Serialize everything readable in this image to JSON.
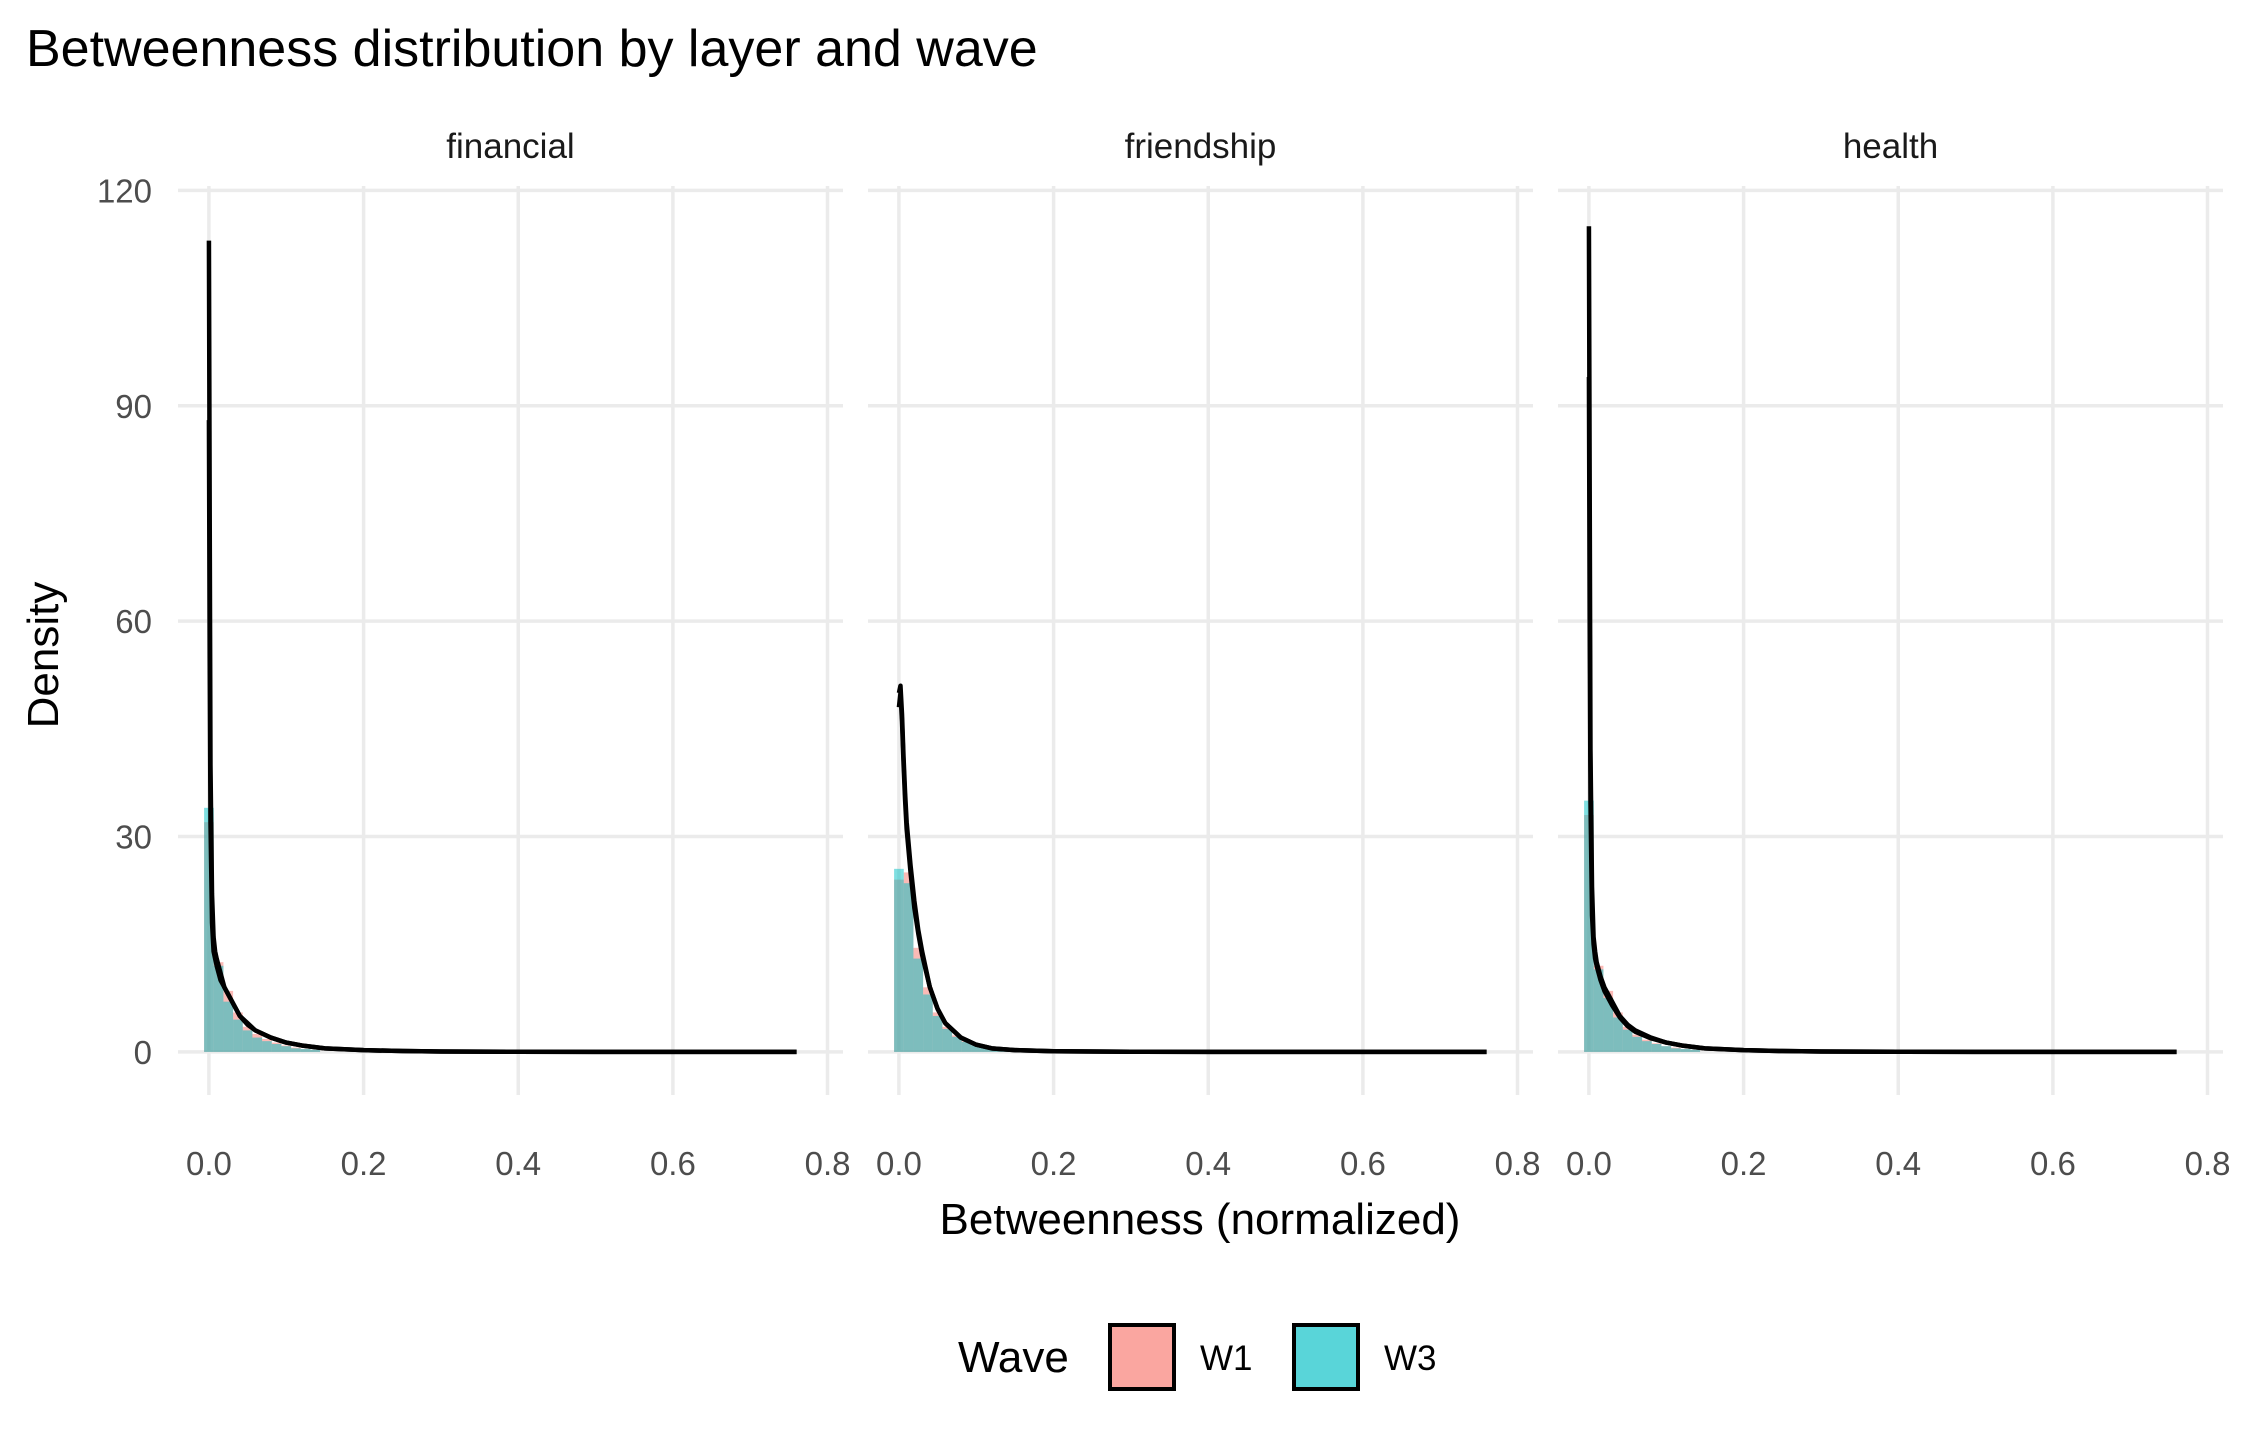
{
  "chart_data": {
    "type": "histogram-density-facets",
    "title": "Betweenness distribution by layer and wave",
    "xlabel": "Betweenness (normalized)",
    "ylabel": "Density",
    "xlim": [
      -0.04,
      0.82
    ],
    "ylim": [
      -6,
      122
    ],
    "x_ticks": [
      0.0,
      0.2,
      0.4,
      0.6,
      0.8
    ],
    "x_tick_labels": [
      "0.0",
      "0.2",
      "0.4",
      "0.6",
      "0.8"
    ],
    "y_ticks": [
      0,
      30,
      60,
      90,
      120
    ],
    "y_tick_labels": [
      "0",
      "30",
      "60",
      "90",
      "120"
    ],
    "grid": true,
    "legend": {
      "title": "Wave",
      "position": "bottom",
      "entries": [
        {
          "label": "W1",
          "color": "#F8766D"
        },
        {
          "label": "W3",
          "color": "#00BFC4"
        }
      ]
    },
    "bin_width": 0.0125,
    "fill_opacity": 0.5,
    "density_line_color": "#000000",
    "facets": [
      {
        "name": "financial",
        "hist_W1": [
          32,
          12.5,
          8.5,
          5.5,
          3.5,
          2.5,
          1.8,
          1.3,
          0.9,
          0.6,
          0.4,
          0.3
        ],
        "hist_W3": [
          34,
          12,
          7,
          4.5,
          3,
          2,
          1.5,
          1.1,
          0.8,
          0.5,
          0.4,
          0.3
        ],
        "density_x": [
          0.0,
          0.001,
          0.002,
          0.004,
          0.006,
          0.008,
          0.01,
          0.015,
          0.02,
          0.03,
          0.04,
          0.05,
          0.06,
          0.08,
          0.1,
          0.12,
          0.15,
          0.2,
          0.25,
          0.3,
          0.4,
          0.5,
          0.6,
          0.7,
          0.76
        ],
        "density_W1": [
          88,
          55,
          32,
          18,
          14,
          13,
          12,
          10,
          9,
          7,
          5,
          3.8,
          3,
          2,
          1.3,
          0.9,
          0.5,
          0.25,
          0.12,
          0.06,
          0.02,
          0.01,
          0,
          0,
          0
        ],
        "density_W3": [
          113,
          75,
          40,
          22,
          16,
          14,
          13,
          11,
          9,
          7,
          5,
          4,
          3,
          2,
          1.3,
          0.9,
          0.5,
          0.25,
          0.12,
          0.06,
          0.02,
          0.01,
          0,
          0,
          0
        ]
      },
      {
        "name": "friendship",
        "hist_W1": [
          24,
          25,
          14.5,
          9,
          5.5,
          3.5,
          2.3,
          1.5,
          1,
          0.6,
          0.4,
          0.3
        ],
        "hist_W3": [
          25.5,
          23.5,
          13,
          8,
          5,
          3.2,
          2.1,
          1.4,
          0.9,
          0.6,
          0.4,
          0.3
        ],
        "density_x": [
          0.0,
          0.002,
          0.004,
          0.006,
          0.008,
          0.01,
          0.015,
          0.02,
          0.025,
          0.03,
          0.04,
          0.05,
          0.06,
          0.08,
          0.1,
          0.12,
          0.15,
          0.2,
          0.25,
          0.3,
          0.4,
          0.5,
          0.6,
          0.7,
          0.76
        ],
        "density_W1": [
          48,
          50,
          46,
          40,
          35,
          31,
          25,
          20,
          16.5,
          13.5,
          9,
          6,
          4,
          2,
          1,
          0.5,
          0.25,
          0.1,
          0.05,
          0.02,
          0.01,
          0,
          0,
          0,
          0
        ],
        "density_W3": [
          50,
          51,
          47,
          41,
          36,
          32,
          26,
          21,
          17,
          14,
          9,
          6,
          4,
          2,
          1,
          0.5,
          0.25,
          0.1,
          0.05,
          0.02,
          0.01,
          0,
          0,
          0,
          0
        ]
      },
      {
        "name": "health",
        "hist_W1": [
          33,
          12,
          8.5,
          5.5,
          3.5,
          2.4,
          1.7,
          1.2,
          0.8,
          0.6,
          0.4,
          0.3
        ],
        "hist_W3": [
          35,
          11.5,
          7.5,
          4.8,
          3.1,
          2.1,
          1.5,
          1.1,
          0.8,
          0.5,
          0.4,
          0.3
        ],
        "density_x": [
          0.0,
          0.001,
          0.002,
          0.004,
          0.006,
          0.008,
          0.01,
          0.015,
          0.02,
          0.03,
          0.04,
          0.05,
          0.06,
          0.08,
          0.1,
          0.12,
          0.15,
          0.2,
          0.25,
          0.3,
          0.4,
          0.5,
          0.6,
          0.7,
          0.76
        ],
        "density_W1": [
          94,
          60,
          35,
          19,
          15,
          13,
          12,
          10,
          8.5,
          6.5,
          4.8,
          3.6,
          2.8,
          1.9,
          1.3,
          0.9,
          0.5,
          0.25,
          0.12,
          0.06,
          0.02,
          0.01,
          0,
          0,
          0
        ],
        "density_W3": [
          115,
          78,
          42,
          23,
          16,
          14,
          12.5,
          10.5,
          9,
          7,
          5,
          3.8,
          3,
          2,
          1.3,
          0.9,
          0.5,
          0.25,
          0.12,
          0.06,
          0.02,
          0.01,
          0,
          0,
          0
        ]
      }
    ]
  }
}
